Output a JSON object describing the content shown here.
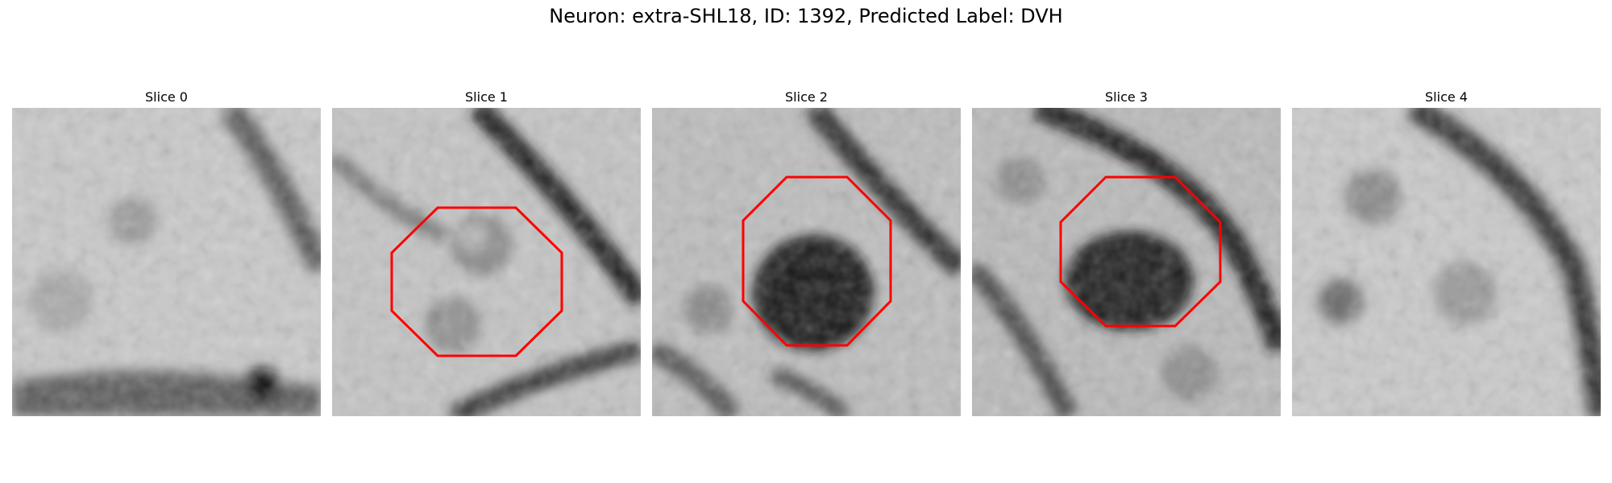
{
  "figure": {
    "title": "Neuron: extra-SHL18, ID: 1392, Predicted Label: DVH"
  },
  "panels": [
    {
      "title": "Slice 0",
      "has_roi": false
    },
    {
      "title": "Slice 1",
      "has_roi": true
    },
    {
      "title": "Slice 2",
      "has_roi": true
    },
    {
      "title": "Slice 3",
      "has_roi": true
    },
    {
      "title": "Slice 4",
      "has_roi": false
    }
  ],
  "colors": {
    "roi_outline": "#ff0000",
    "background": "#ffffff"
  }
}
